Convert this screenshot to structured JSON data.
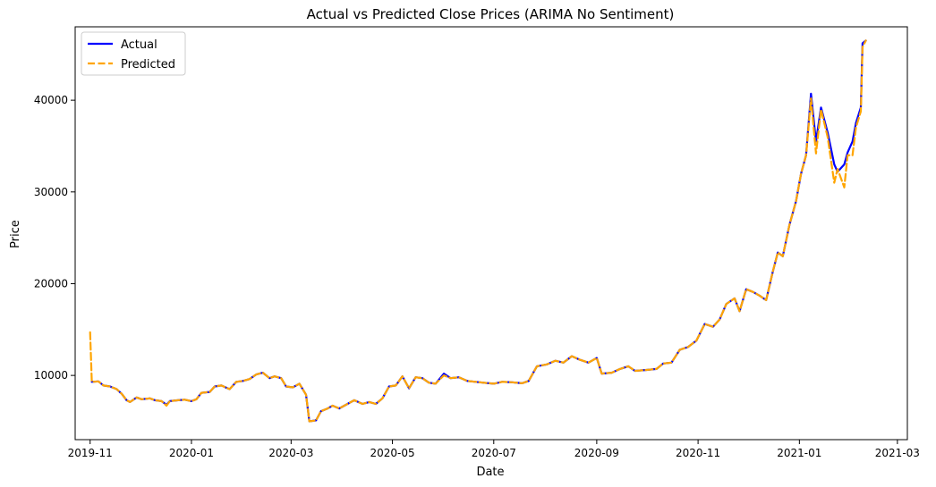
{
  "chart_data": {
    "type": "line",
    "title": "Actual vs Predicted Close Prices (ARIMA No Sentiment)",
    "xlabel": "Date",
    "ylabel": "Price",
    "x_axis_type": "date",
    "xlim": [
      "2019-10-23",
      "2021-03-07"
    ],
    "ylim": [
      3000,
      48000
    ],
    "x_ticks": [
      {
        "date": "2019-11-01",
        "label": "2019-11"
      },
      {
        "date": "2020-01-01",
        "label": "2020-01"
      },
      {
        "date": "2020-03-01",
        "label": "2020-03"
      },
      {
        "date": "2020-05-01",
        "label": "2020-05"
      },
      {
        "date": "2020-07-01",
        "label": "2020-07"
      },
      {
        "date": "2020-09-01",
        "label": "2020-09"
      },
      {
        "date": "2020-11-01",
        "label": "2020-11"
      },
      {
        "date": "2021-01-01",
        "label": "2021-01"
      },
      {
        "date": "2021-03-01",
        "label": "2021-03"
      }
    ],
    "y_ticks": [
      {
        "value": 10000,
        "label": "10000"
      },
      {
        "value": 20000,
        "label": "20000"
      },
      {
        "value": 30000,
        "label": "30000"
      },
      {
        "value": 40000,
        "label": "40000"
      }
    ],
    "grid": false,
    "legend_position": "top-left",
    "series": [
      {
        "name": "Actual",
        "color": "#0000ff",
        "style": "solid",
        "points": [
          [
            "2019-11-02",
            9300
          ],
          [
            "2019-11-06",
            9350
          ],
          [
            "2019-11-09",
            8900
          ],
          [
            "2019-11-13",
            8800
          ],
          [
            "2019-11-17",
            8500
          ],
          [
            "2019-11-20",
            8000
          ],
          [
            "2019-11-23",
            7300
          ],
          [
            "2019-11-25",
            7100
          ],
          [
            "2019-11-29",
            7600
          ],
          [
            "2019-12-02",
            7400
          ],
          [
            "2019-12-07",
            7500
          ],
          [
            "2019-12-10",
            7300
          ],
          [
            "2019-12-14",
            7200
          ],
          [
            "2019-12-17",
            6800
          ],
          [
            "2019-12-19",
            7200
          ],
          [
            "2019-12-24",
            7300
          ],
          [
            "2019-12-28",
            7350
          ],
          [
            "2020-01-01",
            7200
          ],
          [
            "2020-01-04",
            7400
          ],
          [
            "2020-01-07",
            8100
          ],
          [
            "2020-01-12",
            8200
          ],
          [
            "2020-01-15",
            8800
          ],
          [
            "2020-01-19",
            8900
          ],
          [
            "2020-01-24",
            8500
          ],
          [
            "2020-01-28",
            9300
          ],
          [
            "2020-02-01",
            9400
          ],
          [
            "2020-02-05",
            9600
          ],
          [
            "2020-02-09",
            10100
          ],
          [
            "2020-02-13",
            10300
          ],
          [
            "2020-02-17",
            9700
          ],
          [
            "2020-02-20",
            9900
          ],
          [
            "2020-02-24",
            9700
          ],
          [
            "2020-02-27",
            8800
          ],
          [
            "2020-03-02",
            8700
          ],
          [
            "2020-03-06",
            9100
          ],
          [
            "2020-03-10",
            7900
          ],
          [
            "2020-03-12",
            5000
          ],
          [
            "2020-03-16",
            5100
          ],
          [
            "2020-03-19",
            6100
          ],
          [
            "2020-03-23",
            6400
          ],
          [
            "2020-03-26",
            6700
          ],
          [
            "2020-03-30",
            6400
          ],
          [
            "2020-04-04",
            6900
          ],
          [
            "2020-04-08",
            7300
          ],
          [
            "2020-04-13",
            6900
          ],
          [
            "2020-04-17",
            7100
          ],
          [
            "2020-04-21",
            6900
          ],
          [
            "2020-04-25",
            7500
          ],
          [
            "2020-04-29",
            8800
          ],
          [
            "2020-05-03",
            8900
          ],
          [
            "2020-05-07",
            9900
          ],
          [
            "2020-05-11",
            8600
          ],
          [
            "2020-05-15",
            9800
          ],
          [
            "2020-05-19",
            9700
          ],
          [
            "2020-05-23",
            9200
          ],
          [
            "2020-05-27",
            9100
          ],
          [
            "2020-06-01",
            10200
          ],
          [
            "2020-06-05",
            9700
          ],
          [
            "2020-06-10",
            9800
          ],
          [
            "2020-06-15",
            9400
          ],
          [
            "2020-06-20",
            9300
          ],
          [
            "2020-06-25",
            9200
          ],
          [
            "2020-07-01",
            9100
          ],
          [
            "2020-07-06",
            9300
          ],
          [
            "2020-07-12",
            9250
          ],
          [
            "2020-07-18",
            9150
          ],
          [
            "2020-07-22",
            9400
          ],
          [
            "2020-07-27",
            11000
          ],
          [
            "2020-08-02",
            11200
          ],
          [
            "2020-08-07",
            11600
          ],
          [
            "2020-08-12",
            11400
          ],
          [
            "2020-08-17",
            12100
          ],
          [
            "2020-08-22",
            11700
          ],
          [
            "2020-08-27",
            11400
          ],
          [
            "2020-09-01",
            11900
          ],
          [
            "2020-09-04",
            10200
          ],
          [
            "2020-09-10",
            10300
          ],
          [
            "2020-09-15",
            10700
          ],
          [
            "2020-09-20",
            11000
          ],
          [
            "2020-09-24",
            10500
          ],
          [
            "2020-10-01",
            10600
          ],
          [
            "2020-10-07",
            10700
          ],
          [
            "2020-10-11",
            11300
          ],
          [
            "2020-10-16",
            11400
          ],
          [
            "2020-10-21",
            12800
          ],
          [
            "2020-10-26",
            13100
          ],
          [
            "2020-10-31",
            13800
          ],
          [
            "2020-11-05",
            15600
          ],
          [
            "2020-11-10",
            15300
          ],
          [
            "2020-11-14",
            16100
          ],
          [
            "2020-11-18",
            17800
          ],
          [
            "2020-11-23",
            18400
          ],
          [
            "2020-11-26",
            17000
          ],
          [
            "2020-11-30",
            19400
          ],
          [
            "2020-12-04",
            19100
          ],
          [
            "2020-12-08",
            18700
          ],
          [
            "2020-12-12",
            18200
          ],
          [
            "2020-12-16",
            21300
          ],
          [
            "2020-12-19",
            23400
          ],
          [
            "2020-12-22",
            23000
          ],
          [
            "2020-12-26",
            26400
          ],
          [
            "2020-12-30",
            29000
          ],
          [
            "2021-01-02",
            32000
          ],
          [
            "2021-01-05",
            34000
          ],
          [
            "2021-01-08",
            40700
          ],
          [
            "2021-01-11",
            35500
          ],
          [
            "2021-01-14",
            39200
          ],
          [
            "2021-01-18",
            36500
          ],
          [
            "2021-01-22",
            33000
          ],
          [
            "2021-01-24",
            32200
          ],
          [
            "2021-01-28",
            33000
          ],
          [
            "2021-01-30",
            34300
          ],
          [
            "2021-02-02",
            35500
          ],
          [
            "2021-02-04",
            37500
          ],
          [
            "2021-02-07",
            39200
          ],
          [
            "2021-02-08",
            46200
          ],
          [
            "2021-02-10",
            46500
          ]
        ]
      },
      {
        "name": "Predicted",
        "color": "#ffa500",
        "style": "dashed",
        "points": [
          [
            "2019-11-01",
            14700
          ],
          [
            "2019-11-02",
            9300
          ],
          [
            "2019-11-06",
            9350
          ],
          [
            "2019-11-09",
            8900
          ],
          [
            "2019-11-13",
            8800
          ],
          [
            "2019-11-17",
            8500
          ],
          [
            "2019-11-20",
            8000
          ],
          [
            "2019-11-23",
            7300
          ],
          [
            "2019-11-25",
            7100
          ],
          [
            "2019-11-29",
            7600
          ],
          [
            "2019-12-02",
            7400
          ],
          [
            "2019-12-07",
            7500
          ],
          [
            "2019-12-10",
            7300
          ],
          [
            "2019-12-14",
            7200
          ],
          [
            "2019-12-17",
            6700
          ],
          [
            "2019-12-19",
            7200
          ],
          [
            "2019-12-24",
            7300
          ],
          [
            "2019-12-28",
            7350
          ],
          [
            "2020-01-01",
            7200
          ],
          [
            "2020-01-04",
            7400
          ],
          [
            "2020-01-07",
            8100
          ],
          [
            "2020-01-12",
            8200
          ],
          [
            "2020-01-15",
            8800
          ],
          [
            "2020-01-19",
            8900
          ],
          [
            "2020-01-24",
            8500
          ],
          [
            "2020-01-28",
            9300
          ],
          [
            "2020-02-01",
            9400
          ],
          [
            "2020-02-05",
            9600
          ],
          [
            "2020-02-09",
            10100
          ],
          [
            "2020-02-13",
            10300
          ],
          [
            "2020-02-17",
            9700
          ],
          [
            "2020-02-20",
            9900
          ],
          [
            "2020-02-24",
            9700
          ],
          [
            "2020-02-27",
            8800
          ],
          [
            "2020-03-02",
            8700
          ],
          [
            "2020-03-06",
            9100
          ],
          [
            "2020-03-10",
            7900
          ],
          [
            "2020-03-12",
            5000
          ],
          [
            "2020-03-16",
            5100
          ],
          [
            "2020-03-19",
            6100
          ],
          [
            "2020-03-23",
            6400
          ],
          [
            "2020-03-26",
            6700
          ],
          [
            "2020-03-30",
            6400
          ],
          [
            "2020-04-04",
            6900
          ],
          [
            "2020-04-08",
            7300
          ],
          [
            "2020-04-13",
            6900
          ],
          [
            "2020-04-17",
            7100
          ],
          [
            "2020-04-21",
            6900
          ],
          [
            "2020-04-25",
            7500
          ],
          [
            "2020-04-29",
            8800
          ],
          [
            "2020-05-03",
            8900
          ],
          [
            "2020-05-07",
            9900
          ],
          [
            "2020-05-11",
            8600
          ],
          [
            "2020-05-15",
            9800
          ],
          [
            "2020-05-19",
            9700
          ],
          [
            "2020-05-23",
            9200
          ],
          [
            "2020-05-27",
            9100
          ],
          [
            "2020-06-01",
            10000
          ],
          [
            "2020-06-05",
            9700
          ],
          [
            "2020-06-10",
            9800
          ],
          [
            "2020-06-15",
            9400
          ],
          [
            "2020-06-20",
            9300
          ],
          [
            "2020-06-25",
            9200
          ],
          [
            "2020-07-01",
            9100
          ],
          [
            "2020-07-06",
            9300
          ],
          [
            "2020-07-12",
            9250
          ],
          [
            "2020-07-18",
            9150
          ],
          [
            "2020-07-22",
            9400
          ],
          [
            "2020-07-27",
            11000
          ],
          [
            "2020-08-02",
            11200
          ],
          [
            "2020-08-07",
            11600
          ],
          [
            "2020-08-12",
            11400
          ],
          [
            "2020-08-17",
            12100
          ],
          [
            "2020-08-22",
            11700
          ],
          [
            "2020-08-27",
            11400
          ],
          [
            "2020-09-01",
            11900
          ],
          [
            "2020-09-04",
            10200
          ],
          [
            "2020-09-10",
            10300
          ],
          [
            "2020-09-15",
            10700
          ],
          [
            "2020-09-20",
            11000
          ],
          [
            "2020-09-24",
            10500
          ],
          [
            "2020-10-01",
            10600
          ],
          [
            "2020-10-07",
            10700
          ],
          [
            "2020-10-11",
            11300
          ],
          [
            "2020-10-16",
            11400
          ],
          [
            "2020-10-21",
            12800
          ],
          [
            "2020-10-26",
            13100
          ],
          [
            "2020-10-31",
            13800
          ],
          [
            "2020-11-05",
            15600
          ],
          [
            "2020-11-10",
            15300
          ],
          [
            "2020-11-14",
            16100
          ],
          [
            "2020-11-18",
            17800
          ],
          [
            "2020-11-23",
            18400
          ],
          [
            "2020-11-26",
            17000
          ],
          [
            "2020-11-30",
            19400
          ],
          [
            "2020-12-04",
            19100
          ],
          [
            "2020-12-08",
            18700
          ],
          [
            "2020-12-12",
            18200
          ],
          [
            "2020-12-16",
            21300
          ],
          [
            "2020-12-19",
            23400
          ],
          [
            "2020-12-22",
            23000
          ],
          [
            "2020-12-26",
            26400
          ],
          [
            "2020-12-30",
            29000
          ],
          [
            "2021-01-02",
            32000
          ],
          [
            "2021-01-05",
            34000
          ],
          [
            "2021-01-08",
            40200
          ],
          [
            "2021-01-11",
            34200
          ],
          [
            "2021-01-14",
            39000
          ],
          [
            "2021-01-18",
            36000
          ],
          [
            "2021-01-22",
            31000
          ],
          [
            "2021-01-24",
            32500
          ],
          [
            "2021-01-28",
            30500
          ],
          [
            "2021-01-30",
            34000
          ],
          [
            "2021-02-02",
            34000
          ],
          [
            "2021-02-04",
            37000
          ],
          [
            "2021-02-07",
            38800
          ],
          [
            "2021-02-08",
            45800
          ],
          [
            "2021-02-10",
            46500
          ]
        ]
      }
    ]
  }
}
